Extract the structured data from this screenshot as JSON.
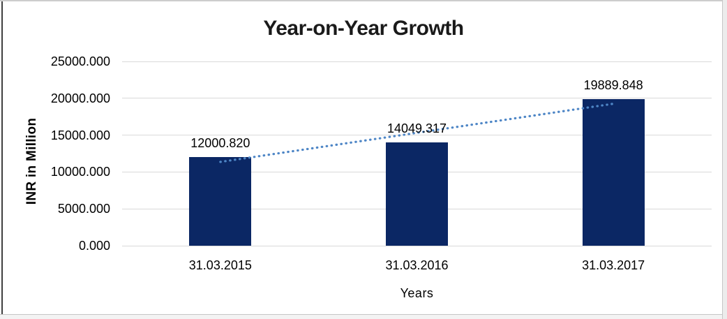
{
  "chart_data": {
    "type": "bar",
    "title": "Year-on-Year Growth",
    "xlabel": "Years",
    "ylabel": "INR in Million",
    "categories": [
      "31.03.2015",
      "31.03.2016",
      "31.03.2017"
    ],
    "values": [
      12000.82,
      14049.317,
      19889.848
    ],
    "data_labels": [
      "12000.820",
      "14049.317",
      "19889.848"
    ],
    "series_name": "INR in Million",
    "ylim": [
      0,
      25000
    ],
    "ytick_step": 5000,
    "ytick_labels": [
      "0.000",
      "5000.000",
      "10000.000",
      "15000.000",
      "20000.000",
      "25000.000"
    ],
    "grid": true,
    "legend_position": "none",
    "bar_color": "#0b2764",
    "gridline_color": "#d9d9d9",
    "text_color": "#000000",
    "title_color": "#1a1a1a",
    "trendline": {
      "fit": "linear",
      "style": "dotted",
      "color": "#4e86c6",
      "start_value": 11368.8,
      "end_value": 19257.9
    }
  }
}
